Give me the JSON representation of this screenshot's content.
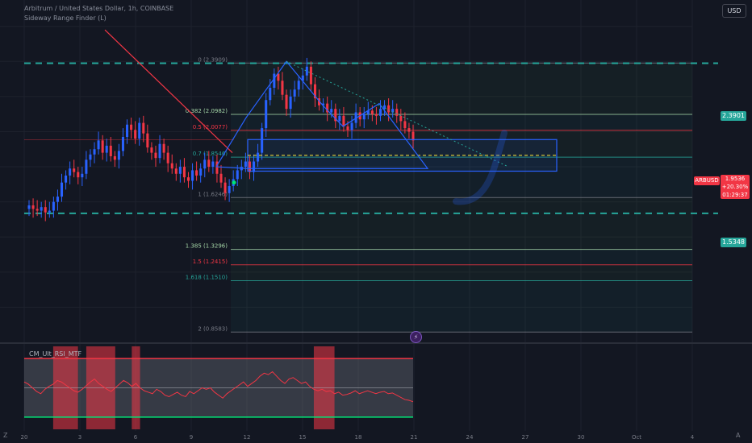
{
  "header": {
    "symbol_line": "Arbitrum / United States Dollar, 1h, COINBASE",
    "indicator_line": "Sideway Range Finder (L)",
    "currency_button": "USD"
  },
  "price_tags": {
    "top_level": "2.3901",
    "bottom_level": "1.5348",
    "symbol": "ARBUSD",
    "last_price": "1.9536",
    "change": "+20.30%",
    "countdown": "01:29:37"
  },
  "corner_labels": {
    "left": "Z",
    "right": "A"
  },
  "colors": {
    "background": "#131722",
    "up_candle": "#2962ff",
    "down_candle": "#f23645",
    "level_line": "#26a69a",
    "trend_line": "#f23645",
    "pattern": "#2962ff",
    "fib": "#26a69a"
  },
  "chart_data": {
    "type": "candlestick",
    "yaxis_side": "right",
    "ylim": [
      0.8,
      2.75
    ],
    "levels": [
      {
        "name": "top",
        "value": 2.3901,
        "style": "dashed"
      },
      {
        "name": "bottom",
        "value": 1.5348,
        "style": "dashed"
      }
    ],
    "fib_levels": [
      {
        "label": "0 (2.3909)",
        "value": 2.3909,
        "color": "#787b86"
      },
      {
        "label": "0.382 (2.0982)",
        "value": 2.0982,
        "color": "#a5d6a7"
      },
      {
        "label": "0.5 (2.0077)",
        "value": 2.0077,
        "color": "#f23645"
      },
      {
        "label": "0.7 (1.8546)",
        "value": 1.8546,
        "color": "#26a69a"
      },
      {
        "label": "1 (1.6246)",
        "value": 1.6246,
        "color": "#787b86"
      },
      {
        "label": "1.385 (1.3296)",
        "value": 1.3296,
        "color": "#a5d6a7"
      },
      {
        "label": "1.5 (1.2415)",
        "value": 1.2415,
        "color": "#f23645"
      },
      {
        "label": "1.618 (1.1510)",
        "value": 1.151,
        "color": "#26a69a"
      },
      {
        "label": "2 (0.8583)",
        "value": 0.8583,
        "color": "#787b86"
      }
    ],
    "range_box": {
      "top": 1.955,
      "bottom": 1.775,
      "mid": 1.865
    },
    "closes": [
      1.58,
      1.56,
      1.55,
      1.57,
      1.54,
      1.55,
      1.6,
      1.63,
      1.71,
      1.75,
      1.79,
      1.77,
      1.74,
      1.76,
      1.84,
      1.87,
      1.9,
      1.95,
      1.88,
      1.92,
      1.86,
      1.84,
      1.89,
      1.97,
      2.04,
      2.01,
      1.96,
      2.05,
      1.99,
      1.91,
      1.88,
      1.85,
      1.93,
      1.88,
      1.82,
      1.79,
      1.76,
      1.8,
      1.74,
      1.72,
      1.78,
      1.75,
      1.79,
      1.84,
      1.8,
      1.83,
      1.76,
      1.71,
      1.65,
      1.69,
      1.73,
      1.78,
      1.8,
      1.83,
      1.77,
      1.83,
      1.88,
      2.02,
      2.18,
      2.25,
      2.33,
      2.29,
      2.21,
      2.13,
      2.2,
      2.24,
      2.29,
      2.32,
      2.37,
      2.27,
      2.19,
      2.15,
      2.16,
      2.11,
      2.13,
      2.06,
      2.09,
      2.03,
      2.01,
      2.05,
      2.11,
      2.07,
      2.1,
      2.12,
      2.1,
      2.09,
      2.13,
      2.15,
      2.11,
      2.13,
      2.09,
      2.06,
      2.02,
      2.0,
      1.95
    ],
    "up_color": "#2962ff",
    "down_color": "#f23645",
    "oscillator": {
      "label": "CM_Ult_RSI_MTF",
      "ylim": [
        0,
        100
      ],
      "upper": 70,
      "mid": 50,
      "lower": 30,
      "values": [
        58,
        55,
        50,
        45,
        42,
        48,
        52,
        55,
        60,
        58,
        54,
        50,
        46,
        44,
        48,
        53,
        58,
        62,
        56,
        52,
        48,
        45,
        50,
        55,
        60,
        57,
        52,
        56,
        50,
        46,
        44,
        42,
        48,
        45,
        40,
        38,
        41,
        44,
        40,
        38,
        45,
        42,
        46,
        50,
        48,
        50,
        44,
        40,
        36,
        42,
        46,
        50,
        54,
        58,
        52,
        56,
        60,
        66,
        70,
        68,
        72,
        66,
        60,
        56,
        62,
        64,
        60,
        56,
        58,
        52,
        48,
        46,
        48,
        45,
        46,
        42,
        44,
        40,
        41,
        43,
        46,
        42,
        44,
        46,
        44,
        42,
        44,
        45,
        42,
        43,
        40,
        37,
        34,
        33,
        31
      ],
      "highlight_bands": [
        [
          7,
          13
        ],
        [
          15,
          22
        ],
        [
          26,
          28
        ],
        [
          70,
          75
        ]
      ],
      "time_labels": [
        "20",
        "3",
        "6",
        "9",
        "12",
        "15",
        "18",
        "21",
        "24",
        "27",
        "30",
        "Oct",
        "4"
      ]
    }
  }
}
